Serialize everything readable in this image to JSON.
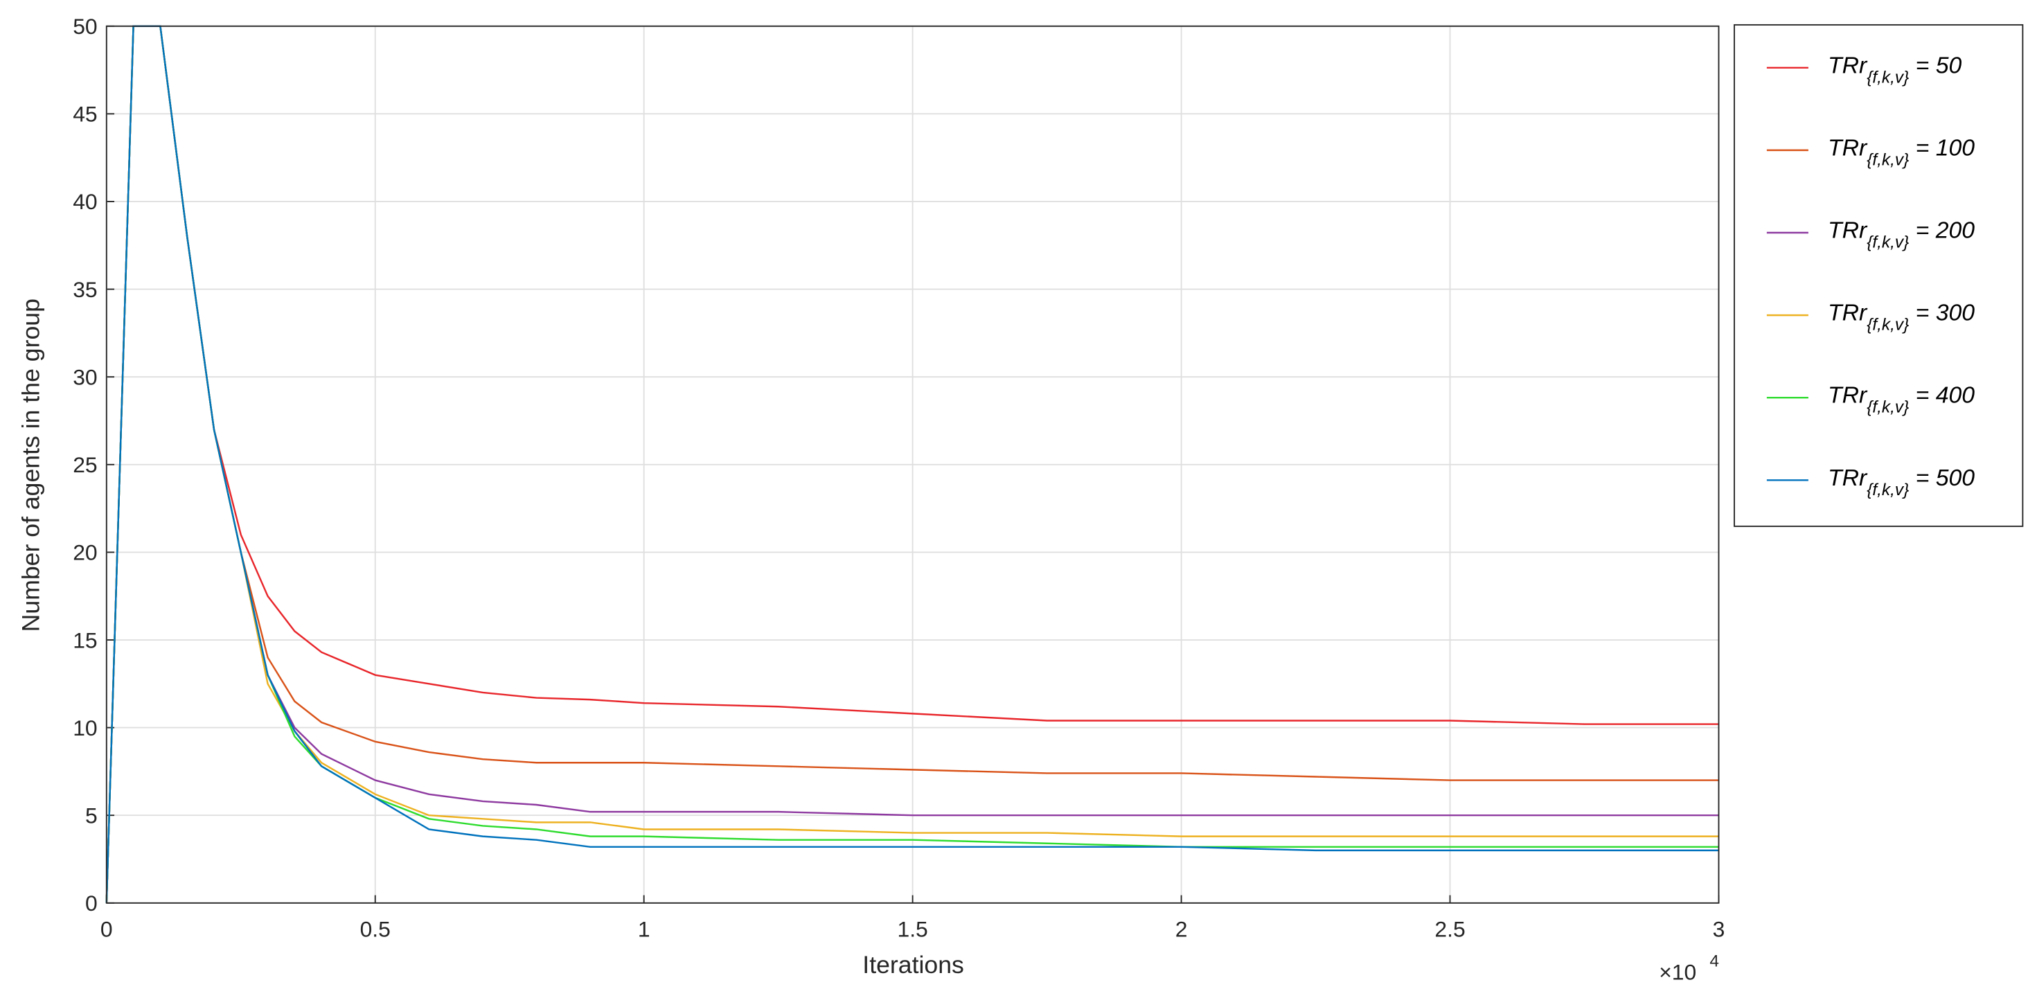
{
  "chart_data": {
    "type": "line",
    "x_label": "Iterations",
    "y_label": "Number of agents in the group",
    "x_multiplier": "×10",
    "x_multiplier_exponent": "4",
    "x": [
      0,
      500,
      1000,
      1500,
      2000,
      2500,
      3000,
      3500,
      4000,
      5000,
      6000,
      7000,
      8000,
      9000,
      10000,
      12500,
      15000,
      17500,
      20000,
      22500,
      25000,
      27500,
      30000
    ],
    "series": [
      {
        "name": "TRr{f,k,v} = 50",
        "color": "#e8262b",
        "values": [
          0,
          50,
          50,
          38,
          27,
          21,
          17.5,
          15.5,
          14.3,
          13,
          12.5,
          12,
          11.7,
          11.6,
          11.4,
          11.2,
          10.8,
          10.4,
          10.4,
          10.4,
          10.4,
          10.2,
          10.2
        ]
      },
      {
        "name": "TRr{f,k,v} = 100",
        "color": "#d95319",
        "values": [
          0,
          50,
          50,
          38,
          27,
          20,
          14,
          11.5,
          10.3,
          9.2,
          8.6,
          8.2,
          8,
          8,
          8,
          7.8,
          7.6,
          7.4,
          7.4,
          7.2,
          7,
          7,
          7
        ]
      },
      {
        "name": "TRr{f,k,v} = 200",
        "color": "#8e3aa0",
        "values": [
          0,
          50,
          50,
          38,
          27,
          20,
          13,
          10,
          8.5,
          7,
          6.2,
          5.8,
          5.6,
          5.2,
          5.2,
          5.2,
          5,
          5,
          5,
          5,
          5,
          5,
          5
        ]
      },
      {
        "name": "TRr{f,k,v} = 300",
        "color": "#edb120",
        "values": [
          0,
          50,
          50,
          38,
          27,
          20,
          12.5,
          9.8,
          8,
          6.2,
          5,
          4.8,
          4.6,
          4.6,
          4.2,
          4.2,
          4,
          4,
          3.8,
          3.8,
          3.8,
          3.8,
          3.8
        ]
      },
      {
        "name": "TRr{f,k,v} = 400",
        "color": "#2fdc2f",
        "values": [
          0,
          50,
          50,
          38,
          27,
          20,
          13,
          9.5,
          7.8,
          6,
          4.8,
          4.4,
          4.2,
          3.8,
          3.8,
          3.6,
          3.6,
          3.4,
          3.2,
          3.2,
          3.2,
          3.2,
          3.2
        ]
      },
      {
        "name": "TRr{f,k,v} = 500",
        "color": "#0072bd",
        "values": [
          0,
          50,
          50,
          38,
          27,
          20,
          13,
          9.8,
          7.8,
          6,
          4.2,
          3.8,
          3.6,
          3.2,
          3.2,
          3.2,
          3.2,
          3.2,
          3.2,
          3,
          3,
          3,
          3
        ]
      }
    ],
    "xlim": [
      0,
      30000
    ],
    "xticks": [
      0,
      {
        "value": 5000,
        "label": "0.5"
      },
      {
        "value": 10000,
        "label": "1"
      },
      {
        "value": 15000,
        "label": "1.5"
      },
      {
        "value": 20000,
        "label": "2"
      },
      {
        "value": 25000,
        "label": "2.5"
      },
      {
        "value": 30000,
        "label": "3"
      }
    ],
    "ylim": [
      0,
      50
    ],
    "yticks": [
      0,
      5,
      10,
      15,
      20,
      25,
      30,
      35,
      40,
      45,
      50
    ],
    "grid": true,
    "legend": "outside-right-top"
  }
}
